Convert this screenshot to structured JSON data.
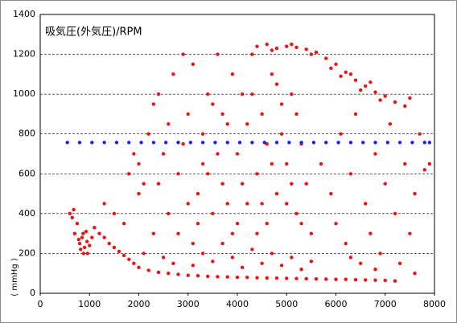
{
  "chart_data": {
    "type": "scatter",
    "title": "吸気圧(外気圧)/RPM",
    "y_label": "( mmHg )",
    "xlim": [
      0,
      8000
    ],
    "xticks": [
      0,
      1000,
      2000,
      3000,
      4000,
      5000,
      6000,
      7000,
      8000
    ],
    "ylim": [
      0,
      1400
    ],
    "yticks": [
      0,
      200,
      400,
      600,
      800,
      1000,
      1200,
      1400
    ],
    "grid": true,
    "series": [
      {
        "color": "#ee1111",
        "x": [
          800,
          850,
          900,
          950,
          870,
          820,
          930,
          1000,
          780,
          880,
          960,
          1050,
          700,
          750,
          650,
          600,
          680,
          1100,
          1200,
          1300,
          1400,
          1500,
          1600,
          1700,
          1800,
          1900,
          2000,
          2200,
          2400,
          2600,
          2800,
          3000,
          3200,
          3400,
          3600,
          3800,
          4000,
          4200,
          4400,
          4600,
          4800,
          5000,
          5200,
          5400,
          5600,
          5800,
          6000,
          6200,
          6400,
          6600,
          6800,
          7000,
          7200,
          1500,
          1300,
          1700,
          2000,
          2300,
          2100,
          2500,
          2700,
          3100,
          3300,
          3500,
          3700,
          3900,
          4100,
          4300,
          4500,
          4700,
          4900,
          5100,
          5300,
          5500,
          2200,
          2300,
          2400,
          2500,
          2600,
          2700,
          2800,
          2900,
          3000,
          3100,
          3200,
          3300,
          3400,
          3500,
          3600,
          3700,
          3800,
          3900,
          4000,
          4100,
          4200,
          4300,
          4400,
          4500,
          4600,
          4700,
          4800,
          4900,
          5000,
          5100,
          5200,
          5300,
          5400,
          5500,
          2600,
          2800,
          3000,
          3200,
          3400,
          3600,
          3800,
          4000,
          4200,
          4400,
          4600,
          4800,
          5000,
          5200,
          3100,
          3500,
          3900,
          4300,
          4700,
          5100,
          2400,
          2900,
          3300,
          3700,
          4100,
          4500,
          4900,
          5300,
          1900,
          2000,
          2100,
          1800,
          4400,
          4600,
          4800,
          5000,
          5200,
          5400,
          5600,
          5800,
          6000,
          6200,
          6400,
          6600,
          6800,
          7000,
          7200,
          7400,
          7500,
          4700,
          5100,
          5500,
          5900,
          6100,
          6300,
          6500,
          6700,
          6900,
          5700,
          5900,
          6000,
          6100,
          6200,
          6300,
          6400,
          6500,
          6600,
          6700,
          6800,
          6900,
          7000,
          7100,
          7200,
          7300,
          7400,
          7500,
          7600,
          7700,
          7800,
          7900,
          7600,
          6300,
          6800
        ],
        "values": [
          250,
          280,
          230,
          260,
          300,
          220,
          310,
          240,
          270,
          200,
          200,
          280,
          300,
          350,
          380,
          400,
          420,
          330,
          300,
          280,
          250,
          230,
          210,
          190,
          170,
          150,
          130,
          115,
          105,
          100,
          95,
          90,
          88,
          85,
          83,
          82,
          80,
          80,
          78,
          77,
          76,
          75,
          74,
          73,
          72,
          71,
          70,
          70,
          68,
          67,
          66,
          65,
          62,
          400,
          450,
          350,
          500,
          300,
          200,
          180,
          150,
          140,
          200,
          160,
          250,
          180,
          130,
          220,
          150,
          200,
          140,
          180,
          120,
          160,
          800,
          950,
          1000,
          700,
          850,
          1100,
          600,
          750,
          900,
          1150,
          500,
          650,
          1000,
          400,
          1200,
          550,
          850,
          300,
          700,
          1000,
          450,
          1200,
          600,
          900,
          350,
          1100,
          500,
          800,
          650,
          1000,
          400,
          750,
          550,
          300,
          400,
          300,
          450,
          350,
          600,
          700,
          450,
          350,
          850,
          300,
          750,
          1050,
          450,
          900,
          250,
          950,
          1100,
          1000,
          650,
          550,
          550,
          1200,
          800,
          900,
          550,
          450,
          950,
          350,
          700,
          650,
          550,
          600,
          1240,
          1250,
          1230,
          1240,
          1235,
          1225,
          1210,
          1180,
          1150,
          1110,
          1070,
          1040,
          1010,
          990,
          960,
          940,
          980,
          1220,
          1250,
          1200,
          1130,
          1090,
          1100,
          1020,
          1060,
          970,
          650,
          500,
          350,
          800,
          250,
          600,
          900,
          150,
          450,
          300,
          700,
          200,
          550,
          850,
          400,
          150,
          650,
          300,
          500,
          800,
          620,
          650,
          100,
          180,
          120
        ]
      },
      {
        "color": "#2222dd",
        "x": [
          550,
          800,
          1050,
          1300,
          1550,
          1800,
          2050,
          2300,
          2550,
          2800,
          3050,
          3300,
          3550,
          3800,
          4050,
          4300,
          4550,
          4800,
          5050,
          5300,
          5550,
          5800,
          6050,
          6300,
          6550,
          6800,
          7050,
          7300,
          7550,
          7800,
          7900
        ],
        "values": [
          757,
          757,
          757,
          757,
          757,
          757,
          757,
          757,
          757,
          757,
          757,
          757,
          757,
          757,
          757,
          757,
          757,
          757,
          757,
          757,
          757,
          757,
          757,
          757,
          757,
          757,
          757,
          757,
          757,
          757,
          757
        ]
      }
    ]
  }
}
